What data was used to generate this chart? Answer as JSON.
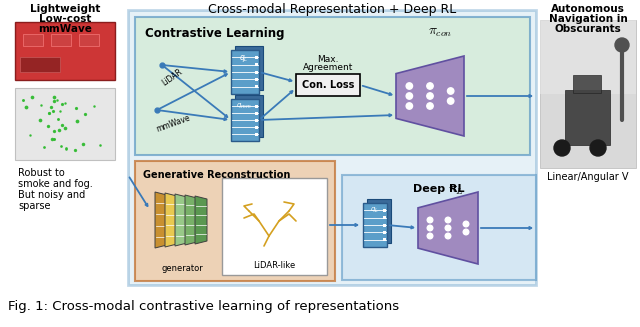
{
  "title_center": "Cross-modal Representation + Deep RL",
  "title_left_line1": "Lightweight",
  "title_left_line2": "Low-cost",
  "title_left_line3": "mmWave",
  "title_right_line1": "Autonomous",
  "title_right_line2": "Navigation in",
  "title_right_line3": "Obscurants",
  "caption": "Fig. 1: Cross-modal contrastive learning of representations",
  "left_caption_line1": "Robust to",
  "left_caption_line2": "smoke and fog.",
  "left_caption_line3": "But noisy and",
  "left_caption_line4": "sparse",
  "right_caption": "Linear/Angular V",
  "bg_color": "#ffffff",
  "main_box_color": "#b8d8ea",
  "cl_box_color": "#d0ead0",
  "gr_box_color": "#f0c8a0",
  "deeprl_box_color": "#c8dff0",
  "encoder_color": "#5b9ec9",
  "neural_color": "#a08abf",
  "gen_colors": [
    "#5a9850",
    "#78b068",
    "#98c888",
    "#e8c850",
    "#c89030"
  ],
  "loss_box_color": "#f0f0f0",
  "arrow_color": "#3a7ab8",
  "lidar_color": "#d4a020"
}
